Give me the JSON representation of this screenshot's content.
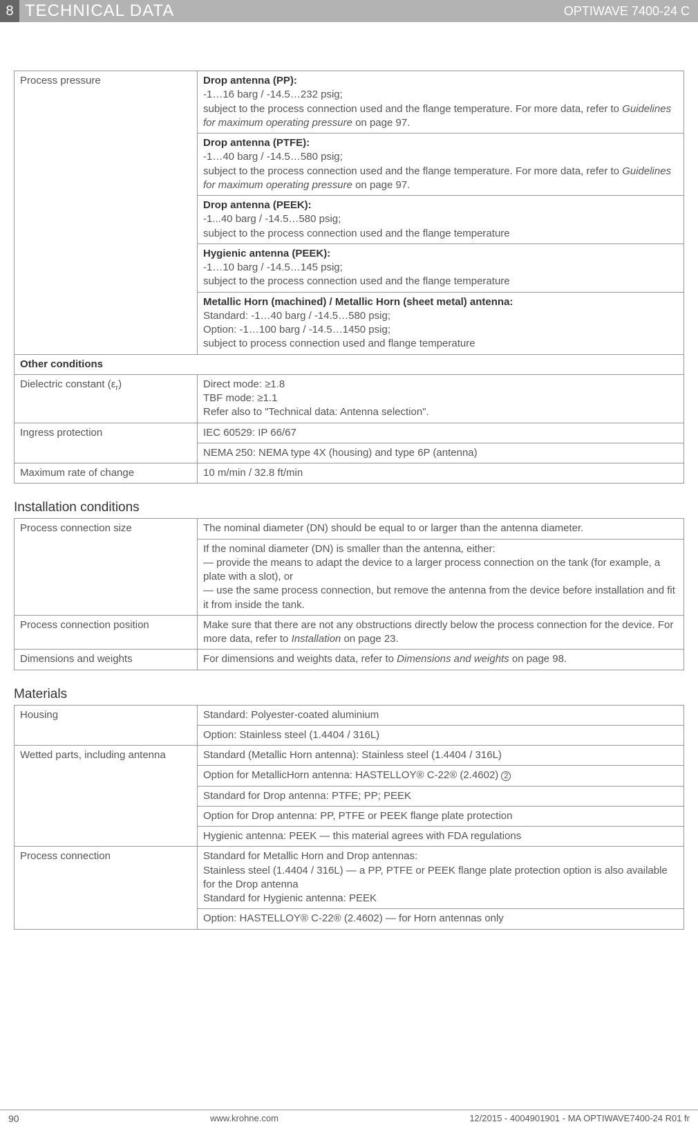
{
  "header": {
    "section_number": "8",
    "title": "TECHNICAL DATA",
    "product": "OPTIWAVE 7400-24 C"
  },
  "table1": {
    "process_pressure_label": "Process pressure",
    "cells": {
      "pp_title": "Drop antenna (PP):",
      "pp_line1": "-1…16 barg / -14.5…232 psig;",
      "pp_line2a": "subject to the process connection used and the flange temperature. For more data, refer to ",
      "pp_line2b": "Guidelines for maximum operating pressure",
      "pp_line2c": " on page 97.",
      "ptfe_title": "Drop antenna (PTFE):",
      "ptfe_line1": "-1…40 barg / -14.5…580 psig;",
      "ptfe_line2a": "subject to the process connection used and the flange temperature. For more data, refer to ",
      "ptfe_line2b": "Guidelines for maximum operating pressure",
      "ptfe_line2c": " on page 97.",
      "peek_title": "Drop antenna (PEEK):",
      "peek_line1": "-1...40 barg / -14.5…580 psig;",
      "peek_line2": "subject to the process connection used and the flange temperature",
      "hyg_title": "Hygienic antenna (PEEK):",
      "hyg_line1": "-1…10 barg / -14.5…145 psig;",
      "hyg_line2": "subject to the process connection used and the flange temperature",
      "horn_title": "Metallic Horn (machined) / Metallic Horn (sheet metal) antenna:",
      "horn_line1": "Standard: -1…40 barg / -14.5…580 psig;",
      "horn_line2": "Option: -1…100 barg / -14.5…1450 psig;",
      "horn_line3": "subject to process connection used and flange temperature"
    },
    "other_conditions": "Other conditions",
    "dielectric_label_a": "Dielectric constant (ε",
    "dielectric_label_b": "r",
    "dielectric_label_c": ")",
    "dielectric_l1": "Direct mode: ≥1.8",
    "dielectric_l2": "TBF mode: ≥1.1",
    "dielectric_l3": "Refer also to \"Technical data: Antenna selection\".",
    "ingress_label": "Ingress protection",
    "ingress_v1": "IEC 60529: IP 66/67",
    "ingress_v2": "NEMA 250: NEMA type 4X (housing) and type 6P (antenna)",
    "rate_label": "Maximum rate of change",
    "rate_v": "10 m/min / 32.8 ft/min"
  },
  "install_heading": "Installation conditions",
  "table2": {
    "pcs_label": "Process connection size",
    "pcs_v1": "The nominal diameter (DN) should be equal to or larger than the antenna diameter.",
    "pcs_v2": "If the nominal diameter (DN) is smaller than the antenna, either:\n— provide the means to adapt the device to a larger process connection on the tank (for example, a plate with a slot), or\n— use the same process connection, but remove the antenna from the device before installation and fit it from inside the tank.",
    "pcp_label": "Process connection position",
    "pcp_v_a": "Make sure that there are not any obstructions directly below the process connection for the device. For more data, refer to ",
    "pcp_v_b": "Installation",
    "pcp_v_c": " on page 23.",
    "dim_label": "Dimensions and weights",
    "dim_v_a": "For dimensions and weights data, refer to ",
    "dim_v_b": "Dimensions and weights",
    "dim_v_c": " on page 98."
  },
  "materials_heading": "Materials",
  "table3": {
    "housing_label": "Housing",
    "housing_v1": "Standard: Polyester-coated aluminium",
    "housing_v2": "Option: Stainless steel (1.4404 / 316L)",
    "wetted_label": "Wetted parts, including antenna",
    "wetted_v1": "Standard (Metallic Horn antenna): Stainless steel (1.4404 / 316L)",
    "wetted_v2a": "Option for MetallicHorn antenna: HASTELLOY® C-22® (2.4602) ",
    "wetted_v2b": "2",
    "wetted_v3": "Standard for Drop antenna: PTFE; PP; PEEK",
    "wetted_v4": "Option for Drop antenna: PP, PTFE or PEEK flange plate protection",
    "wetted_v5": "Hygienic antenna: PEEK — this material agrees with FDA regulations",
    "pc_label": "Process connection",
    "pc_v1": "Standard for Metallic Horn and Drop antennas:\nStainless steel (1.4404 / 316L) — a PP, PTFE or PEEK flange plate protection option is also available for the Drop antenna\nStandard for Hygienic antenna: PEEK",
    "pc_v2": "Option: HASTELLOY® C-22® (2.4602) — for Horn antennas only"
  },
  "footer": {
    "page": "90",
    "site": "www.krohne.com",
    "docid": "12/2015 - 4004901901 - MA OPTIWAVE7400-24 R01 fr"
  }
}
